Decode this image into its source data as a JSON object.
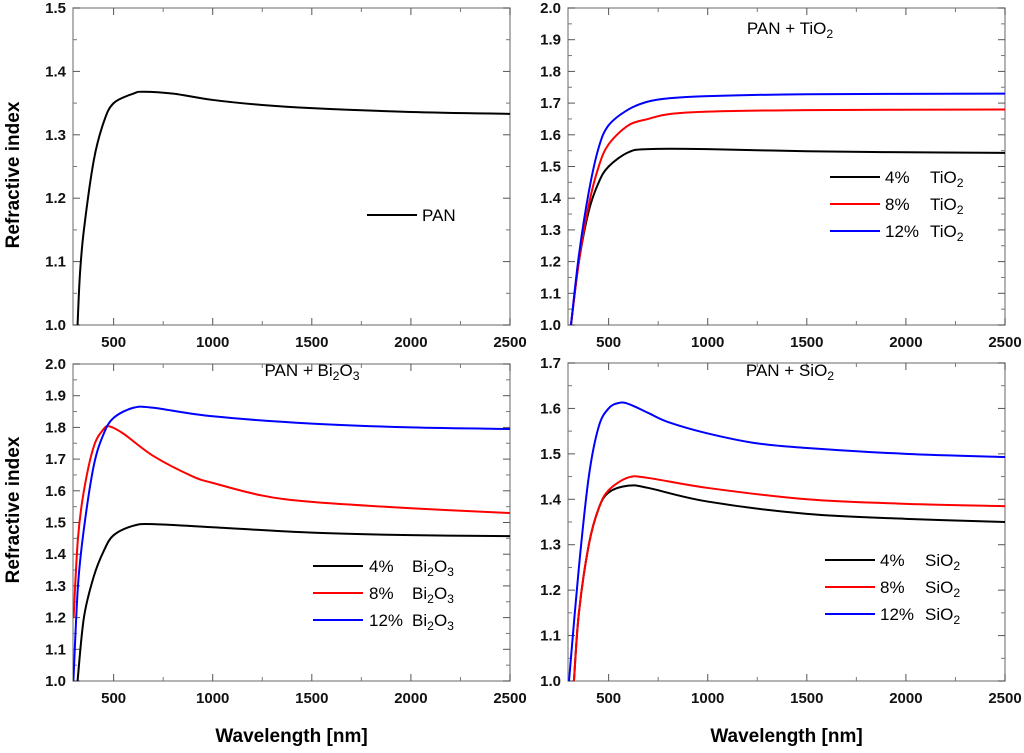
{
  "chart_data": [
    {
      "type": "line",
      "title": "",
      "xlabel": "",
      "ylabel": "Refractive index",
      "xlim": [
        295,
        2500
      ],
      "ylim": [
        1.0,
        1.5
      ],
      "xticks": [
        500,
        1000,
        1500,
        2000,
        2500
      ],
      "yticks": [
        1.0,
        1.1,
        1.2,
        1.3,
        1.4,
        1.5
      ],
      "legend_position": "center-right",
      "series": [
        {
          "name": "PAN",
          "color": "#000000",
          "x": [
            318,
            330,
            350,
            400,
            450,
            500,
            600,
            650,
            800,
            1000,
            1250,
            1500,
            2000,
            2500
          ],
          "y": [
            1.0,
            1.08,
            1.15,
            1.26,
            1.32,
            1.35,
            1.365,
            1.368,
            1.365,
            1.355,
            1.347,
            1.342,
            1.336,
            1.333
          ]
        }
      ]
    },
    {
      "type": "line",
      "title": "PAN + TiO2",
      "xlabel": "",
      "ylabel": "",
      "xlim": [
        295,
        2500
      ],
      "ylim": [
        1.0,
        2.0
      ],
      "xticks": [
        500,
        1000,
        1500,
        2000,
        2500
      ],
      "yticks": [
        1.0,
        1.1,
        1.2,
        1.3,
        1.4,
        1.5,
        1.6,
        1.7,
        1.8,
        1.9,
        2.0
      ],
      "legend_position": "center-right",
      "series": [
        {
          "name": "4%  TiO2",
          "pct": "4%",
          "formula": "TiO2",
          "color": "#000000",
          "x": [
            310,
            350,
            400,
            450,
            500,
            600,
            700,
            1000,
            1500,
            2000,
            2500
          ],
          "y": [
            1.0,
            1.2,
            1.36,
            1.45,
            1.5,
            1.545,
            1.555,
            1.555,
            1.548,
            1.545,
            1.543
          ]
        },
        {
          "name": "8%  TiO2",
          "pct": "8%",
          "formula": "TiO2",
          "color": "#ff0000",
          "x": [
            310,
            350,
            400,
            450,
            500,
            600,
            700,
            800,
            1000,
            1500,
            2500
          ],
          "y": [
            1.0,
            1.2,
            1.38,
            1.5,
            1.57,
            1.63,
            1.65,
            1.665,
            1.673,
            1.678,
            1.68
          ]
        },
        {
          "name": "12% TiO2",
          "pct": "12%",
          "formula": "TiO2",
          "color": "#0000ff",
          "x": [
            310,
            350,
            400,
            450,
            500,
            600,
            700,
            800,
            1000,
            1500,
            2500
          ],
          "y": [
            1.0,
            1.22,
            1.42,
            1.56,
            1.63,
            1.68,
            1.705,
            1.715,
            1.722,
            1.728,
            1.73
          ]
        }
      ]
    },
    {
      "type": "line",
      "title": "PAN + Bi2O3",
      "xlabel": "Wavelength [nm]",
      "ylabel": "Refractive index",
      "xlim": [
        295,
        2500
      ],
      "ylim": [
        1.0,
        2.0
      ],
      "xticks": [
        500,
        1000,
        1500,
        2000,
        2500
      ],
      "yticks": [
        1.0,
        1.1,
        1.2,
        1.3,
        1.4,
        1.5,
        1.6,
        1.7,
        1.8,
        1.9,
        2.0
      ],
      "legend_position": "lower-right",
      "series": [
        {
          "name": "4%  Bi2O3",
          "pct": "4%",
          "formula": "Bi2O3",
          "color": "#000000",
          "x": [
            318,
            350,
            400,
            450,
            500,
            600,
            700,
            1000,
            1500,
            2000,
            2500
          ],
          "y": [
            1.0,
            1.2,
            1.33,
            1.41,
            1.46,
            1.49,
            1.495,
            1.485,
            1.468,
            1.46,
            1.457
          ]
        },
        {
          "name": "8%  Bi2O3",
          "pct": "8%",
          "formula": "Bi2O3",
          "color": "#ff0000",
          "x": [
            298,
            320,
            350,
            400,
            450,
            480,
            550,
            700,
            900,
            1000,
            1250,
            1500,
            2000,
            2500
          ],
          "y": [
            1.2,
            1.45,
            1.6,
            1.74,
            1.795,
            1.803,
            1.78,
            1.71,
            1.645,
            1.625,
            1.585,
            1.565,
            1.545,
            1.53
          ]
        },
        {
          "name": "12% Bi2O3",
          "pct": "12%",
          "formula": "Bi2O3",
          "color": "#0000ff",
          "x": [
            297,
            320,
            350,
            400,
            450,
            500,
            600,
            700,
            1000,
            1500,
            2000,
            2500
          ],
          "y": [
            1.0,
            1.3,
            1.48,
            1.68,
            1.78,
            1.83,
            1.862,
            1.862,
            1.835,
            1.812,
            1.8,
            1.795
          ]
        }
      ]
    },
    {
      "type": "line",
      "title": "PAN + SiO2",
      "xlabel": "Wavelength [nm]",
      "ylabel": "",
      "xlim": [
        295,
        2500
      ],
      "ylim": [
        1.0,
        1.7
      ],
      "xticks": [
        500,
        1000,
        1500,
        2000,
        2500
      ],
      "yticks": [
        1.0,
        1.1,
        1.2,
        1.3,
        1.4,
        1.5,
        1.6,
        1.7
      ],
      "legend_position": "lower-right",
      "series": [
        {
          "name": "4%  SiO2",
          "pct": "4%",
          "formula": "SiO2",
          "color": "#000000",
          "x": [
            325,
            350,
            400,
            450,
            500,
            600,
            700,
            1000,
            1500,
            2000,
            2500
          ],
          "y": [
            1.0,
            1.15,
            1.3,
            1.38,
            1.415,
            1.43,
            1.425,
            1.395,
            1.368,
            1.357,
            1.35
          ]
        },
        {
          "name": "8%  SiO2",
          "pct": "8%",
          "formula": "SiO2",
          "color": "#ff0000",
          "x": [
            325,
            350,
            400,
            450,
            500,
            600,
            700,
            1000,
            1500,
            2000,
            2500
          ],
          "y": [
            1.0,
            1.15,
            1.3,
            1.38,
            1.42,
            1.448,
            1.447,
            1.425,
            1.4,
            1.39,
            1.385
          ]
        },
        {
          "name": "12% SiO2",
          "pct": "12%",
          "formula": "SiO2",
          "color": "#0000ff",
          "x": [
            300,
            350,
            400,
            450,
            500,
            550,
            600,
            700,
            800,
            1000,
            1250,
            1500,
            2000,
            2500
          ],
          "y": [
            1.0,
            1.25,
            1.45,
            1.56,
            1.6,
            1.612,
            1.61,
            1.59,
            1.57,
            1.545,
            1.523,
            1.513,
            1.5,
            1.493
          ]
        }
      ]
    }
  ]
}
